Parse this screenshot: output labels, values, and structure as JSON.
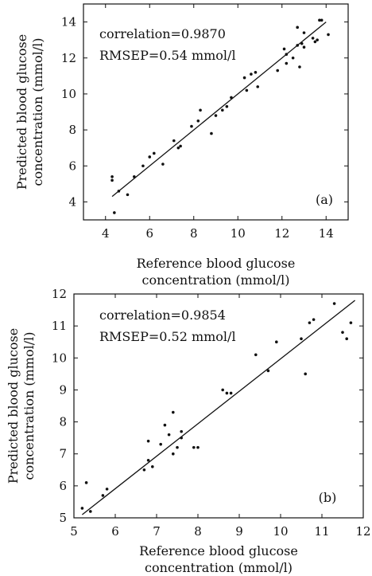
{
  "chart_data": [
    {
      "type": "scatter",
      "panel_label": "(a)",
      "xlabel": [
        "Reference blood glucose",
        "concentration (mmol/l)"
      ],
      "ylabel": [
        "Predicted blood glucose",
        "concentration (mmol/l)"
      ],
      "xlim": [
        3,
        15
      ],
      "ylim": [
        3,
        15
      ],
      "xticks": [
        4,
        6,
        8,
        10,
        12,
        14
      ],
      "yticks": [
        4,
        6,
        8,
        10,
        12,
        14
      ],
      "annotations": [
        "correlation=0.9870",
        "RMSEP=0.54 mmol/l"
      ],
      "fit_line": {
        "x": [
          4.3,
          14.0
        ],
        "y": [
          4.3,
          14.0
        ]
      },
      "points": [
        [
          4.3,
          5.4
        ],
        [
          4.3,
          5.2
        ],
        [
          4.4,
          3.4
        ],
        [
          4.6,
          4.6
        ],
        [
          5.0,
          4.4
        ],
        [
          5.3,
          5.4
        ],
        [
          5.7,
          6.0
        ],
        [
          6.0,
          6.5
        ],
        [
          6.2,
          6.7
        ],
        [
          6.6,
          6.1
        ],
        [
          7.1,
          7.4
        ],
        [
          7.3,
          7.0
        ],
        [
          7.4,
          7.1
        ],
        [
          7.9,
          8.2
        ],
        [
          8.2,
          8.5
        ],
        [
          8.3,
          9.1
        ],
        [
          8.8,
          7.8
        ],
        [
          9.0,
          8.8
        ],
        [
          9.3,
          9.1
        ],
        [
          9.5,
          9.3
        ],
        [
          9.7,
          9.8
        ],
        [
          10.3,
          10.9
        ],
        [
          10.4,
          10.2
        ],
        [
          10.6,
          11.1
        ],
        [
          10.8,
          11.2
        ],
        [
          10.9,
          10.4
        ],
        [
          11.8,
          11.3
        ],
        [
          12.1,
          12.5
        ],
        [
          12.2,
          12.2
        ],
        [
          12.2,
          11.7
        ],
        [
          12.5,
          12.0
        ],
        [
          12.7,
          13.7
        ],
        [
          12.7,
          12.7
        ],
        [
          12.8,
          11.5
        ],
        [
          12.9,
          12.8
        ],
        [
          13.0,
          13.4
        ],
        [
          13.0,
          12.6
        ],
        [
          13.4,
          13.1
        ],
        [
          13.5,
          12.9
        ],
        [
          13.6,
          13.0
        ],
        [
          13.7,
          14.1
        ],
        [
          13.8,
          14.1
        ],
        [
          14.1,
          13.3
        ]
      ]
    },
    {
      "type": "scatter",
      "panel_label": "(b)",
      "xlabel": [
        "Reference blood glucose",
        "concentration (mmol/l)"
      ],
      "ylabel": [
        "Predicted blood glucose",
        "concentration (mmol/l)"
      ],
      "xlim": [
        5,
        12
      ],
      "ylim": [
        5,
        12
      ],
      "xticks": [
        5,
        6,
        7,
        8,
        9,
        10,
        11,
        12
      ],
      "yticks": [
        5,
        6,
        7,
        8,
        9,
        10,
        11,
        12
      ],
      "annotations": [
        "correlation=0.9854",
        "RMSEP=0.52 mmol/l"
      ],
      "fit_line": {
        "x": [
          5.2,
          11.8
        ],
        "y": [
          5.1,
          11.8
        ]
      },
      "points": [
        [
          5.2,
          5.3
        ],
        [
          5.3,
          6.1
        ],
        [
          5.4,
          5.2
        ],
        [
          5.7,
          5.7
        ],
        [
          5.8,
          5.9
        ],
        [
          6.7,
          6.5
        ],
        [
          6.8,
          6.8
        ],
        [
          6.8,
          7.4
        ],
        [
          6.9,
          6.6
        ],
        [
          7.1,
          7.3
        ],
        [
          7.2,
          7.9
        ],
        [
          7.3,
          7.6
        ],
        [
          7.4,
          8.3
        ],
        [
          7.4,
          7.0
        ],
        [
          7.5,
          7.2
        ],
        [
          7.6,
          7.5
        ],
        [
          7.6,
          7.7
        ],
        [
          7.9,
          7.2
        ],
        [
          8.0,
          7.2
        ],
        [
          8.6,
          9.0
        ],
        [
          8.7,
          8.9
        ],
        [
          8.8,
          8.9
        ],
        [
          9.4,
          10.1
        ],
        [
          9.7,
          9.6
        ],
        [
          9.9,
          10.5
        ],
        [
          10.5,
          10.6
        ],
        [
          10.6,
          9.5
        ],
        [
          10.7,
          11.1
        ],
        [
          10.8,
          11.2
        ],
        [
          11.3,
          11.7
        ],
        [
          11.5,
          10.8
        ],
        [
          11.6,
          10.6
        ],
        [
          11.7,
          11.1
        ]
      ]
    }
  ]
}
